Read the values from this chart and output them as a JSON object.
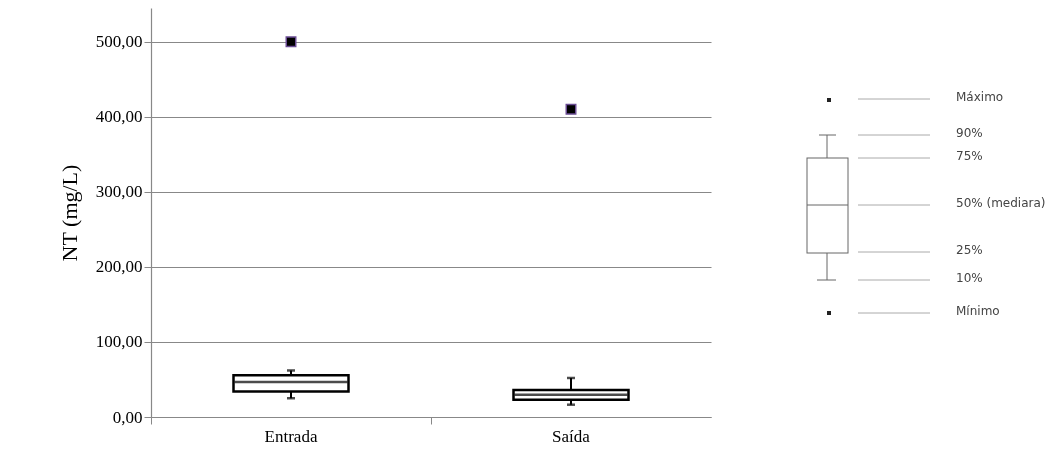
{
  "chart_data": {
    "type": "box",
    "ylabel": "NT (mg/L)",
    "categories": [
      "Entrada",
      "Saída"
    ],
    "boxes": [
      {
        "low": 25,
        "q1": 34,
        "median": 46.6,
        "q3": 55.6,
        "high": 62,
        "outliers": [
          500
        ]
      },
      {
        "low": 16.4,
        "q1": 23,
        "median": 29.6,
        "q3": 36,
        "high": 52,
        "outliers": [
          410
        ]
      }
    ],
    "ylim": [
      0,
      545
    ],
    "yticks": [
      {
        "value": 0,
        "label": "0,00"
      },
      {
        "value": 100,
        "label": "100,00"
      },
      {
        "value": 200,
        "label": "200,00"
      },
      {
        "value": 300,
        "label": "300,00"
      },
      {
        "value": 400,
        "label": "400,00"
      },
      {
        "value": 500,
        "label": "500,00"
      }
    ],
    "grid": "y",
    "annotations": [
      "Máximo",
      "90%",
      "75%",
      "50% (mediara)",
      "25%",
      "10%",
      "Mínimo"
    ]
  }
}
